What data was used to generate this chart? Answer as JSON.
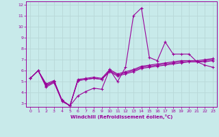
{
  "xlabel": "Windchill (Refroidissement éolien,°C)",
  "bg_color": "#c8eaea",
  "grid_color": "#b8d8d8",
  "line_color": "#990099",
  "xlim": [
    -0.5,
    23.5
  ],
  "ylim": [
    2.7,
    12.3
  ],
  "yticks": [
    3,
    4,
    5,
    6,
    7,
    8,
    9,
    10,
    11,
    12
  ],
  "xticks": [
    0,
    1,
    2,
    3,
    4,
    5,
    6,
    7,
    8,
    9,
    10,
    11,
    12,
    13,
    14,
    15,
    16,
    17,
    18,
    19,
    20,
    21,
    22,
    23
  ],
  "series": [
    {
      "x": [
        0,
        1,
        2,
        3,
        4,
        5,
        6,
        7,
        8,
        9,
        10,
        11,
        12,
        13,
        14,
        15,
        16,
        17,
        18,
        19,
        20,
        21,
        22,
        23
      ],
      "y": [
        5.3,
        6.0,
        4.5,
        4.9,
        3.2,
        2.8,
        3.7,
        4.1,
        4.4,
        4.3,
        6.1,
        5.0,
        6.3,
        11.0,
        11.7,
        7.2,
        6.9,
        8.6,
        7.5,
        7.5,
        7.5,
        6.8,
        6.5,
        6.3
      ]
    },
    {
      "x": [
        0,
        1,
        2,
        3,
        4,
        5,
        6,
        7,
        8,
        9,
        10,
        11,
        12,
        13,
        14,
        15,
        16,
        17,
        18,
        19,
        20,
        21,
        22,
        23
      ],
      "y": [
        5.3,
        6.0,
        4.6,
        5.0,
        3.3,
        2.8,
        5.1,
        5.2,
        5.3,
        5.2,
        5.9,
        5.5,
        5.7,
        5.9,
        6.2,
        6.3,
        6.4,
        6.5,
        6.6,
        6.7,
        6.8,
        6.8,
        6.8,
        6.9
      ]
    },
    {
      "x": [
        0,
        1,
        2,
        3,
        4,
        5,
        6,
        7,
        8,
        9,
        10,
        11,
        12,
        13,
        14,
        15,
        16,
        17,
        18,
        19,
        20,
        21,
        22,
        23
      ],
      "y": [
        5.3,
        6.0,
        4.7,
        5.0,
        3.3,
        2.8,
        5.1,
        5.2,
        5.3,
        5.2,
        6.0,
        5.6,
        5.8,
        6.0,
        6.3,
        6.4,
        6.5,
        6.6,
        6.7,
        6.8,
        6.8,
        6.8,
        6.9,
        7.0
      ]
    },
    {
      "x": [
        0,
        1,
        2,
        3,
        4,
        5,
        6,
        7,
        8,
        9,
        10,
        11,
        12,
        13,
        14,
        15,
        16,
        17,
        18,
        19,
        20,
        21,
        22,
        23
      ],
      "y": [
        5.3,
        6.0,
        4.8,
        5.1,
        3.3,
        2.8,
        5.2,
        5.3,
        5.4,
        5.3,
        6.1,
        5.7,
        5.9,
        6.1,
        6.4,
        6.5,
        6.6,
        6.7,
        6.8,
        6.9,
        6.9,
        6.9,
        7.0,
        7.1
      ]
    }
  ]
}
